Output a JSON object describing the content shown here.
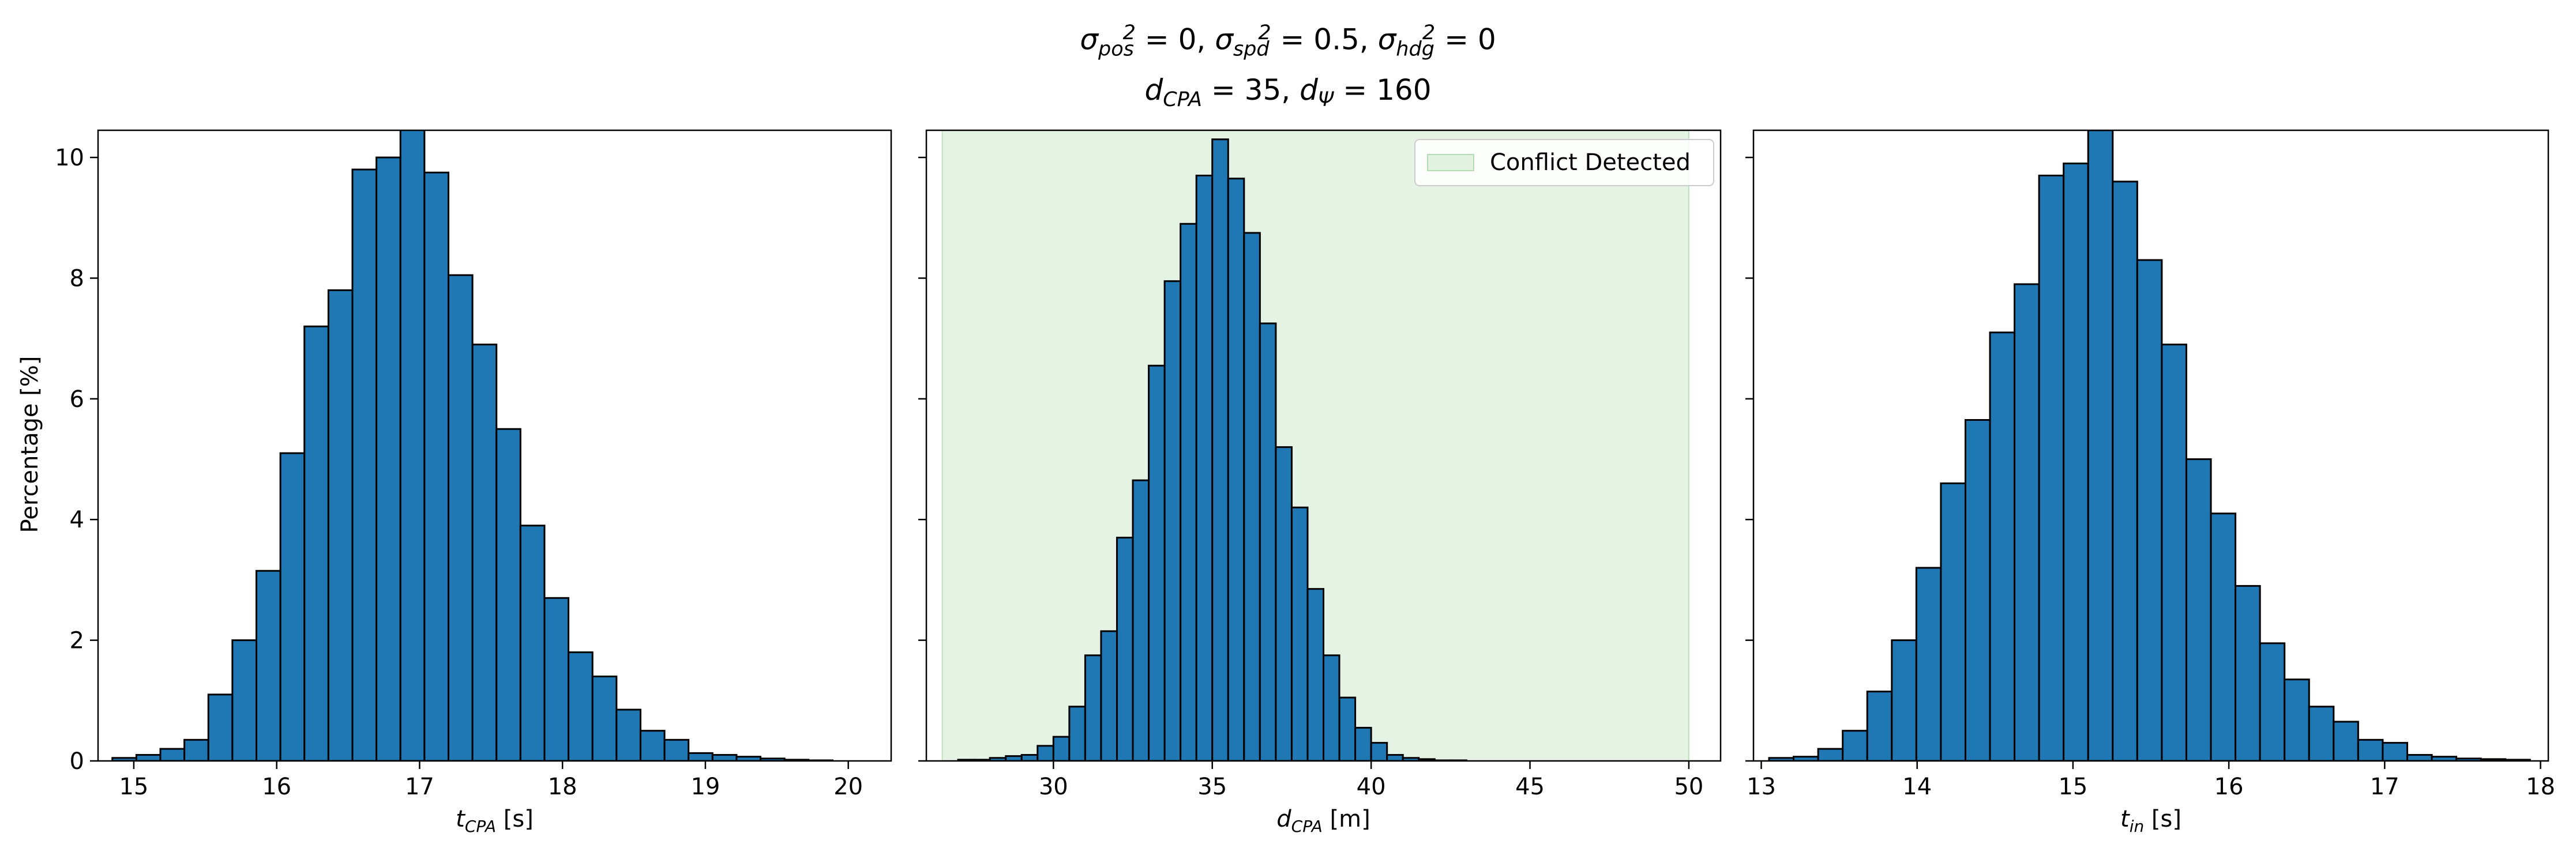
{
  "title": {
    "line1": "σ²pos = 0, σ²spd = 0.5, σ²hdg = 0",
    "line2": "dCPA = 35, dΨ = 160"
  },
  "colors": {
    "bar": "#1f77b4",
    "edge": "#000000",
    "region": "#2ca02c",
    "region_alpha": 0.12
  },
  "chart_data": [
    {
      "type": "bar",
      "subtype": "histogram",
      "xlabel": "t_CPA [s]",
      "ylabel": "Percentage [%]",
      "xlim": [
        14.75,
        20.3
      ],
      "ylim": [
        0,
        10.45
      ],
      "xticks": [
        15,
        16,
        17,
        18,
        19,
        20
      ],
      "yticks": [
        0,
        2,
        4,
        6,
        8,
        10
      ],
      "bin_start": 14.85,
      "bin_width": 0.168,
      "values": [
        0.05,
        0.1,
        0.2,
        0.35,
        1.1,
        2.0,
        3.15,
        5.1,
        7.2,
        7.8,
        9.8,
        10.0,
        10.5,
        9.75,
        8.05,
        6.9,
        5.5,
        3.9,
        2.7,
        1.8,
        1.4,
        0.85,
        0.5,
        0.35,
        0.13,
        0.1,
        0.07,
        0.04,
        0.02,
        0.01
      ]
    },
    {
      "type": "bar",
      "subtype": "histogram",
      "xlabel": "d_CPA [m]",
      "ylabel": "",
      "xlim": [
        26.0,
        51.0
      ],
      "ylim": [
        0,
        10.45
      ],
      "xticks": [
        30,
        35,
        40,
        45,
        50
      ],
      "yticks": [
        0,
        2,
        4,
        6,
        8,
        10
      ],
      "bin_start": 27.0,
      "bin_width": 0.5,
      "values": [
        0.02,
        0.02,
        0.05,
        0.08,
        0.1,
        0.25,
        0.4,
        0.9,
        1.75,
        2.15,
        3.7,
        4.65,
        6.55,
        7.95,
        8.9,
        9.7,
        10.3,
        9.65,
        8.75,
        7.25,
        5.2,
        4.2,
        2.85,
        1.75,
        1.05,
        0.55,
        0.3,
        0.1,
        0.05,
        0.03,
        0.01,
        0.01
      ],
      "shaded_region": {
        "x": [
          26.5,
          50.0
        ],
        "label": "Conflict Detected"
      },
      "legend": {
        "position": "top-right",
        "entries": [
          "Conflict Detected"
        ]
      }
    },
    {
      "type": "bar",
      "subtype": "histogram",
      "xlabel": "t_in [s]",
      "ylabel": "",
      "xlim": [
        12.95,
        18.05
      ],
      "ylim": [
        0,
        10.45
      ],
      "xticks": [
        13,
        14,
        15,
        16,
        17,
        18
      ],
      "yticks": [
        0,
        2,
        4,
        6,
        8,
        10
      ],
      "bin_start": 13.05,
      "bin_width": 0.1575,
      "values": [
        0.05,
        0.07,
        0.2,
        0.5,
        1.15,
        2.0,
        3.2,
        4.6,
        5.65,
        7.1,
        7.9,
        9.7,
        9.9,
        10.45,
        9.6,
        8.3,
        6.9,
        5.0,
        4.1,
        2.9,
        1.95,
        1.35,
        0.9,
        0.65,
        0.35,
        0.3,
        0.1,
        0.07,
        0.04,
        0.03,
        0.02
      ]
    }
  ]
}
